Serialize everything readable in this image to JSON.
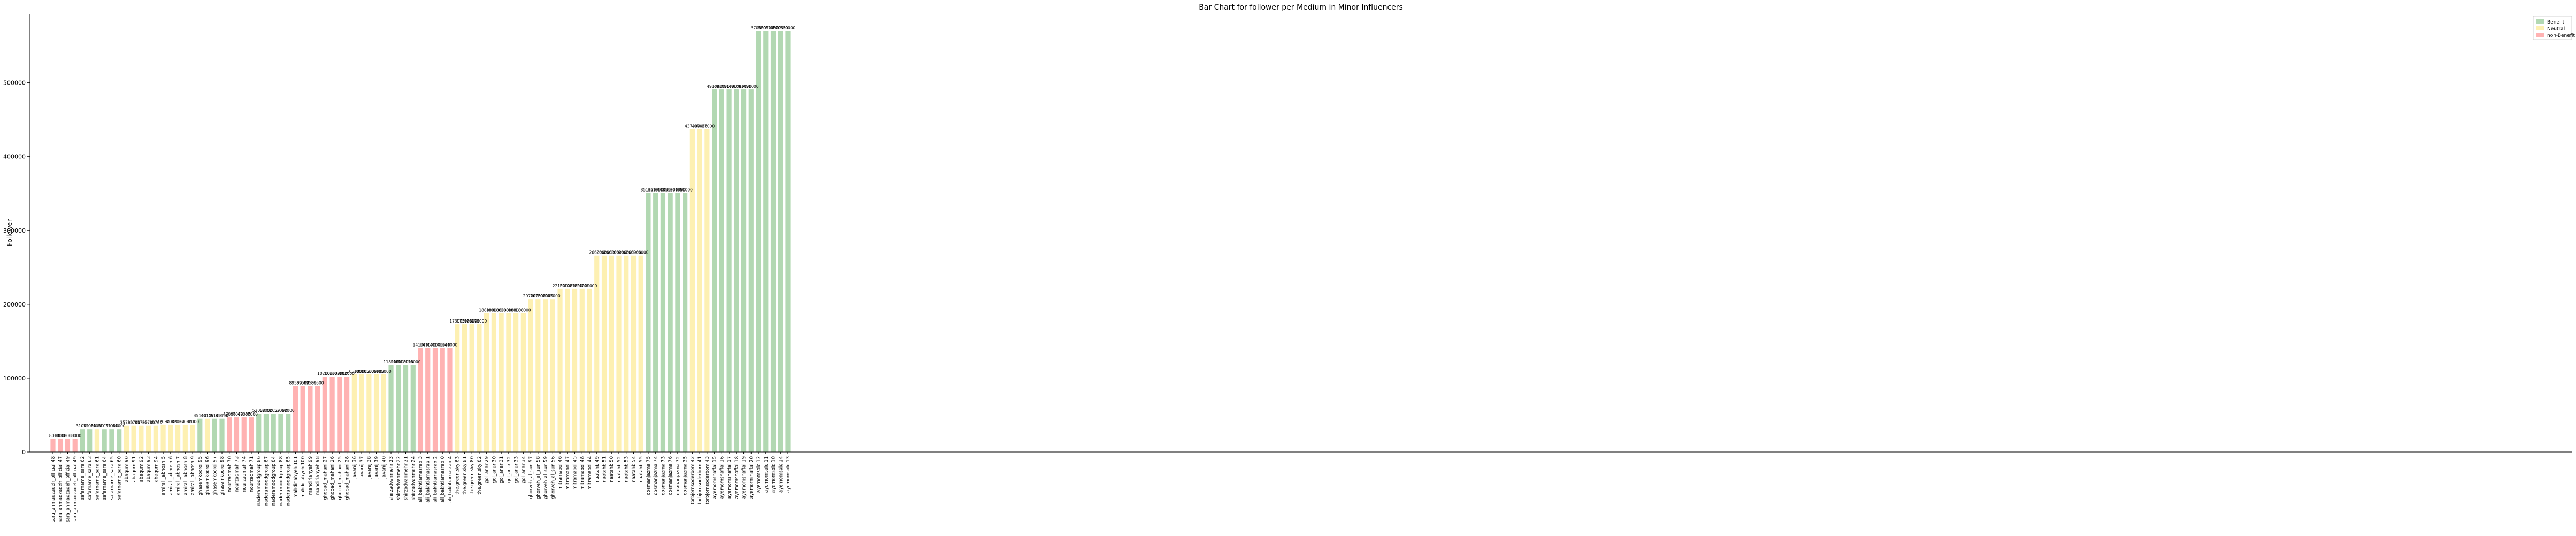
{
  "chart_data": {
    "type": "bar",
    "title": "Bar Chart for follower per Medium in Minor Influencers",
    "xlabel": "",
    "ylabel": "Follower",
    "ylim": [
      0,
      600000
    ],
    "yticks": [
      0,
      100000,
      200000,
      300000,
      400000,
      500000
    ],
    "grid": false,
    "legend_position": "top-right",
    "legend": [
      {
        "label": "Benefit",
        "color": "#b2d8b2"
      },
      {
        "label": "Neutral",
        "color": "#fdf0b2"
      },
      {
        "label": "non-Benefit",
        "color": "#ffb2b2"
      }
    ],
    "colors": {
      "Benefit": "#b2d8b2",
      "Neutral": "#fdf0b2",
      "non-Benefit": "#ffb2b2"
    },
    "bars": [
      {
        "label": "sara_ahmadzadeh_official 48",
        "value": 18000,
        "sentiment": "non-Benefit"
      },
      {
        "label": "sara_ahmadzadeh_official 47",
        "value": 18000,
        "sentiment": "non-Benefit"
      },
      {
        "label": "sara_ahmadzadeh_official 49",
        "value": 18000,
        "sentiment": "non-Benefit"
      },
      {
        "label": "sara_ahmadzadeh_official 49",
        "value": 18000,
        "sentiment": "non-Benefit"
      },
      {
        "label": "safarname_sara 62",
        "value": 31000,
        "sentiment": "Benefit"
      },
      {
        "label": "safarname_sara 63",
        "value": 31000,
        "sentiment": "Benefit"
      },
      {
        "label": "safarname_sara 61",
        "value": 31000,
        "sentiment": "Neutral"
      },
      {
        "label": "safarname_sara 64",
        "value": 31000,
        "sentiment": "Benefit"
      },
      {
        "label": "safarname_sara 65",
        "value": 31000,
        "sentiment": "Benefit"
      },
      {
        "label": "safarname_sara 60",
        "value": 31000,
        "sentiment": "Benefit"
      },
      {
        "label": "abaqum 90",
        "value": 35700,
        "sentiment": "Neutral"
      },
      {
        "label": "abaqum 91",
        "value": 35700,
        "sentiment": "Neutral"
      },
      {
        "label": "abaqum 92",
        "value": 35700,
        "sentiment": "Neutral"
      },
      {
        "label": "abaqum 93",
        "value": 35700,
        "sentiment": "Neutral"
      },
      {
        "label": "abaqum 94",
        "value": 35700,
        "sentiment": "Neutral"
      },
      {
        "label": "amirali_abnosh 5",
        "value": 37000,
        "sentiment": "Neutral"
      },
      {
        "label": "amirali_abnosh 6",
        "value": 37000,
        "sentiment": "Neutral"
      },
      {
        "label": "amirali_abnosh 7",
        "value": 37000,
        "sentiment": "Neutral"
      },
      {
        "label": "amirali_abnosh 8",
        "value": 37000,
        "sentiment": "Neutral"
      },
      {
        "label": "amirali_abnosh 9",
        "value": 37000,
        "sentiment": "Neutral"
      },
      {
        "label": "ghasemkooroi 95",
        "value": 45100,
        "sentiment": "Benefit"
      },
      {
        "label": "ghasemkooroi 96",
        "value": 45100,
        "sentiment": "Neutral"
      },
      {
        "label": "ghasemkooroi 97",
        "value": 45100,
        "sentiment": "Benefit"
      },
      {
        "label": "ghasemkooroi 98",
        "value": 45100,
        "sentiment": "Benefit"
      },
      {
        "label": "nourzadmah 70",
        "value": 47000,
        "sentiment": "non-Benefit"
      },
      {
        "label": "nourzadmah 73",
        "value": 47000,
        "sentiment": "non-Benefit"
      },
      {
        "label": "nourzadmah 74",
        "value": 47000,
        "sentiment": "non-Benefit"
      },
      {
        "label": "nourzadmah 71",
        "value": 47000,
        "sentiment": "non-Benefit"
      },
      {
        "label": "naderamoodgroup 86",
        "value": 52000,
        "sentiment": "Benefit"
      },
      {
        "label": "naderamoodgroup 87",
        "value": 52000,
        "sentiment": "Benefit"
      },
      {
        "label": "naderamoodgroup 84",
        "value": 52000,
        "sentiment": "Benefit"
      },
      {
        "label": "naderamoodgroup 88",
        "value": 52000,
        "sentiment": "Benefit"
      },
      {
        "label": "naderamoodgroup 85",
        "value": 52000,
        "sentiment": "Benefit"
      },
      {
        "label": "mahdiriahyeh 101",
        "value": 89500,
        "sentiment": "non-Benefit"
      },
      {
        "label": "mahdiriahyeh 100",
        "value": 89500,
        "sentiment": "non-Benefit"
      },
      {
        "label": "mahdiriahyeh 99",
        "value": 89500,
        "sentiment": "non-Benefit"
      },
      {
        "label": "mahdiriahyeh 98",
        "value": 89500,
        "sentiment": "non-Benefit"
      },
      {
        "label": "ghobad_mahani 27",
        "value": 102000,
        "sentiment": "non-Benefit"
      },
      {
        "label": "ghobad_mahani 26",
        "value": 102000,
        "sentiment": "non-Benefit"
      },
      {
        "label": "ghobad_mahani 25",
        "value": 102000,
        "sentiment": "non-Benefit"
      },
      {
        "label": "ghobad_mahani 28",
        "value": 102000,
        "sentiment": "non-Benefit"
      },
      {
        "label": "javanij 36",
        "value": 105000,
        "sentiment": "Neutral"
      },
      {
        "label": "javanij 37",
        "value": 105000,
        "sentiment": "Neutral"
      },
      {
        "label": "javanij 38",
        "value": 105000,
        "sentiment": "Neutral"
      },
      {
        "label": "javanij 39",
        "value": 105000,
        "sentiment": "Neutral"
      },
      {
        "label": "javanij 40",
        "value": 105000,
        "sentiment": "Neutral"
      },
      {
        "label": "shirzadvanmehr 23",
        "value": 118000,
        "sentiment": "Benefit"
      },
      {
        "label": "shirzadvanmehr 22",
        "value": 118000,
        "sentiment": "Benefit"
      },
      {
        "label": "shirzadvanmehr 21",
        "value": 118000,
        "sentiment": "Benefit"
      },
      {
        "label": "shirzadvanmehr 24",
        "value": 118000,
        "sentiment": "Benefit"
      },
      {
        "label": "ali_bakhtiarnasrab 3",
        "value": 141000,
        "sentiment": "non-Benefit"
      },
      {
        "label": "ali_bakhtiarnasrab 1",
        "value": 141000,
        "sentiment": "non-Benefit"
      },
      {
        "label": "ali_bakhtiarnasrab 2",
        "value": 141000,
        "sentiment": "non-Benefit"
      },
      {
        "label": "ali_bakhtiarnasrab 0",
        "value": 141000,
        "sentiment": "non-Benefit"
      },
      {
        "label": "ali_bakhtiarnasrab 4",
        "value": 141000,
        "sentiment": "non-Benefit"
      },
      {
        "label": "the.green.sky 83",
        "value": 173000,
        "sentiment": "Neutral"
      },
      {
        "label": "the.green.sky 81",
        "value": 173000,
        "sentiment": "Neutral"
      },
      {
        "label": "the.green.sky 80",
        "value": 173000,
        "sentiment": "Neutral"
      },
      {
        "label": "the.green.sky 82",
        "value": 173000,
        "sentiment": "Neutral"
      },
      {
        "label": "gol_anar 29",
        "value": 188000,
        "sentiment": "Neutral"
      },
      {
        "label": "gol_anar 30",
        "value": 188000,
        "sentiment": "Neutral"
      },
      {
        "label": "gol_anar 31",
        "value": 188000,
        "sentiment": "Neutral"
      },
      {
        "label": "gol_anar 32",
        "value": 188000,
        "sentiment": "Neutral"
      },
      {
        "label": "gol_anar 33",
        "value": 188000,
        "sentiment": "Neutral"
      },
      {
        "label": "gol_anar 34",
        "value": 188000,
        "sentiment": "Neutral"
      },
      {
        "label": "ghorveh_al_sun 57",
        "value": 207000,
        "sentiment": "Neutral"
      },
      {
        "label": "ghorveh_al_sun 58",
        "value": 207000,
        "sentiment": "Neutral"
      },
      {
        "label": "ghorveh_al_sun 59",
        "value": 207000,
        "sentiment": "Neutral"
      },
      {
        "label": "ghorveh_al_sun 56",
        "value": 207000,
        "sentiment": "Neutral"
      },
      {
        "label": "mitramabol 46",
        "value": 221000,
        "sentiment": "Neutral"
      },
      {
        "label": "mitramabol 47",
        "value": 221000,
        "sentiment": "Neutral"
      },
      {
        "label": "mitramabol 45",
        "value": 221000,
        "sentiment": "Neutral"
      },
      {
        "label": "mitramabol 48",
        "value": 221000,
        "sentiment": "Neutral"
      },
      {
        "label": "mitramabol 44",
        "value": 221000,
        "sentiment": "Neutral"
      },
      {
        "label": "naatahb 49",
        "value": 266000,
        "sentiment": "Neutral"
      },
      {
        "label": "naatahb 51",
        "value": 266000,
        "sentiment": "Neutral"
      },
      {
        "label": "naatahb 50",
        "value": 266000,
        "sentiment": "Neutral"
      },
      {
        "label": "naatahb 52",
        "value": 266000,
        "sentiment": "Neutral"
      },
      {
        "label": "naatahb 53",
        "value": 266000,
        "sentiment": "Neutral"
      },
      {
        "label": "naatahb 54",
        "value": 266000,
        "sentiment": "Neutral"
      },
      {
        "label": "naatahb 55",
        "value": 266000,
        "sentiment": "Neutral"
      },
      {
        "label": "oosmanjazma 75",
        "value": 351000,
        "sentiment": "Benefit"
      },
      {
        "label": "oosmanjazma 74",
        "value": 351000,
        "sentiment": "Benefit"
      },
      {
        "label": "oosmanjazma 73",
        "value": 351000,
        "sentiment": "Benefit"
      },
      {
        "label": "oosmanjazma 76",
        "value": 351000,
        "sentiment": "Benefit"
      },
      {
        "label": "oosmanjazma 72",
        "value": 351000,
        "sentiment": "Benefit"
      },
      {
        "label": "oosmanjazma 35",
        "value": 351000,
        "sentiment": "Benefit"
      },
      {
        "label": "torbjornsoderbom 42",
        "value": 437000,
        "sentiment": "Neutral"
      },
      {
        "label": "torbjornsoderbom 41",
        "value": 437000,
        "sentiment": "Neutral"
      },
      {
        "label": "torbjornsoderbom 43",
        "value": 437000,
        "sentiment": "Neutral"
      },
      {
        "label": "ayemomshaffal 15",
        "value": 491000,
        "sentiment": "Benefit"
      },
      {
        "label": "ayemomshaffal 16",
        "value": 491000,
        "sentiment": "Benefit"
      },
      {
        "label": "ayemomshaffal 17",
        "value": 491000,
        "sentiment": "Benefit"
      },
      {
        "label": "ayemomshaffal 18",
        "value": 491000,
        "sentiment": "Benefit"
      },
      {
        "label": "ayemomshaffal 19",
        "value": 491000,
        "sentiment": "Benefit"
      },
      {
        "label": "ayemomshaffal 20",
        "value": 491000,
        "sentiment": "Benefit"
      },
      {
        "label": "ayemomsolo 12",
        "value": 570000,
        "sentiment": "Benefit"
      },
      {
        "label": "ayemomsolo 11",
        "value": 570000,
        "sentiment": "Benefit"
      },
      {
        "label": "ayemomsolo 10",
        "value": 570000,
        "sentiment": "Benefit"
      },
      {
        "label": "ayemomsolo 14",
        "value": 570000,
        "sentiment": "Benefit"
      },
      {
        "label": "ayemomsolo 13",
        "value": 570000,
        "sentiment": "Benefit"
      }
    ]
  }
}
